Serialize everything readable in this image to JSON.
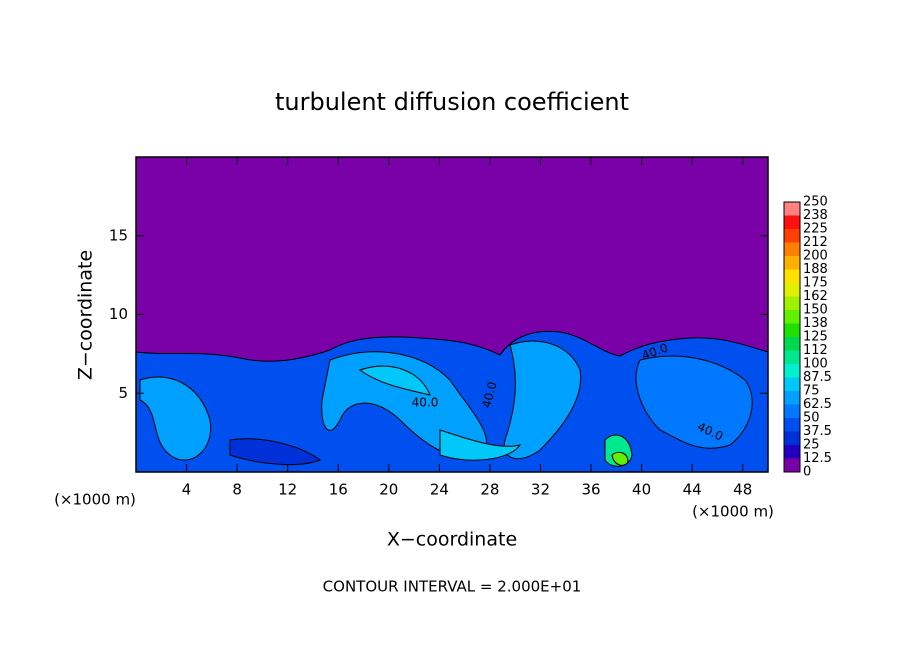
{
  "chart_data": {
    "type": "contour",
    "title": "turbulent diffusion coefficient",
    "xlabel": "X−coordinate",
    "ylabel": "Z−coordinate",
    "x_unit": "(×1000 m)",
    "xlim": [
      0,
      50
    ],
    "ylim": [
      0,
      20
    ],
    "xticks": [
      4,
      8,
      12,
      16,
      20,
      24,
      28,
      32,
      36,
      40,
      44,
      48
    ],
    "yticks": [
      5,
      10,
      15
    ],
    "colorbar": {
      "levels": [
        0,
        12.5,
        25,
        37.5,
        50,
        62.5,
        75,
        87.5,
        100,
        112,
        125,
        138,
        150,
        162,
        175,
        188,
        200,
        212,
        225,
        238,
        250
      ],
      "colors": [
        "#7a00a8",
        "#2200c0",
        "#0030d8",
        "#0050f0",
        "#0078ff",
        "#00a0ff",
        "#00c8f8",
        "#00f0d0",
        "#00e890",
        "#00d850",
        "#20e000",
        "#60f000",
        "#a0f000",
        "#e0f000",
        "#ffe000",
        "#ffb000",
        "#ff8000",
        "#ff4000",
        "#ff1010",
        "#ff8080"
      ]
    },
    "contour_labels": [
      "40.0",
      "40.0",
      "40.0",
      "40.0"
    ],
    "note": "CONTOUR INTERVAL = 2.000E+01"
  }
}
